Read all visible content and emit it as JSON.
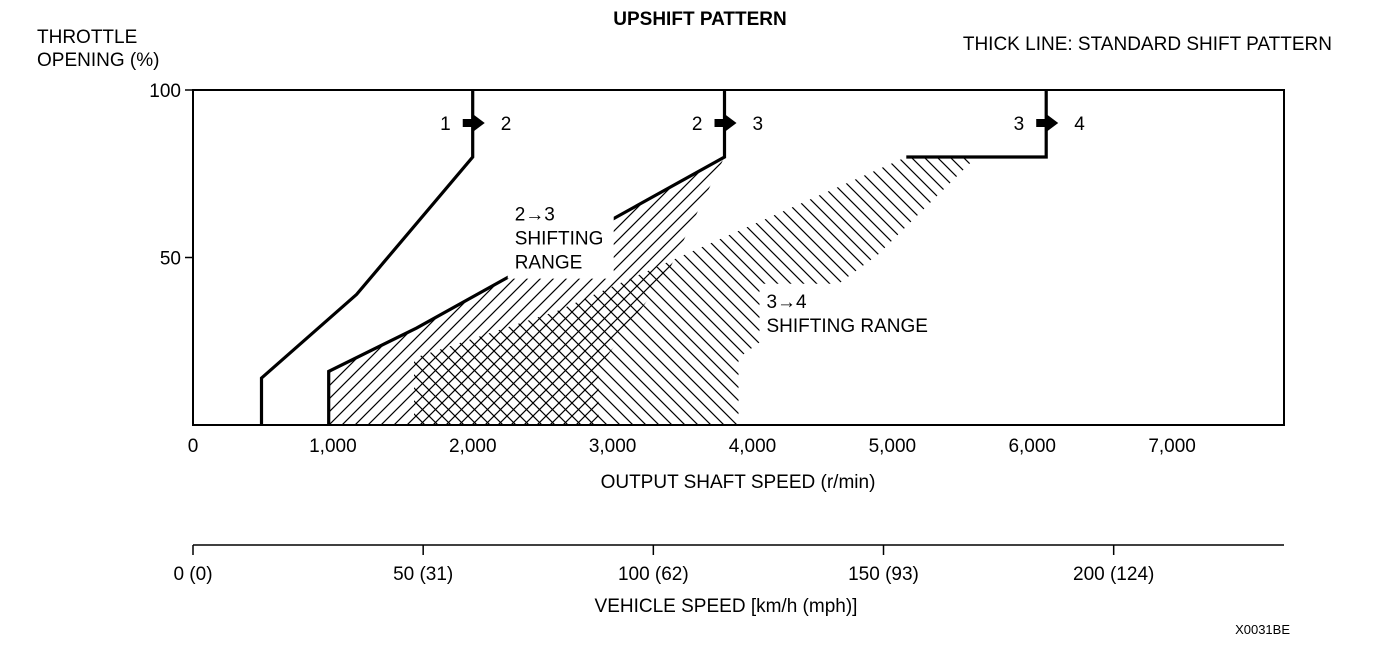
{
  "chart_data": {
    "type": "line",
    "title": "UPSHIFT PATTERN",
    "note": "THICK LINE: STANDARD SHIFT PATTERN",
    "ylabel_line1": "THROTTLE",
    "ylabel_line2": "OPENING (%)",
    "xlabel": "OUTPUT SHAFT SPEED (r/min)",
    "x2label": "VEHICLE SPEED [km/h (mph)]",
    "figure_code": "X0031BE",
    "xlim": [
      0,
      7800
    ],
    "ylim": [
      0,
      100
    ],
    "x_ticks": [
      {
        "value": 0,
        "label": "0"
      },
      {
        "value": 1000,
        "label": "1,000"
      },
      {
        "value": 2000,
        "label": "2,000"
      },
      {
        "value": 3000,
        "label": "3,000"
      },
      {
        "value": 4000,
        "label": "4,000"
      },
      {
        "value": 5000,
        "label": "5,000"
      },
      {
        "value": 6000,
        "label": "6,000"
      },
      {
        "value": 7000,
        "label": "7,000"
      }
    ],
    "y_ticks": [
      {
        "value": 50,
        "label": "50"
      },
      {
        "value": 100,
        "label": "100"
      }
    ],
    "x2_ticks": [
      {
        "value": 0,
        "label": "0 (0)"
      },
      {
        "value": 50,
        "label": "50 (31)"
      },
      {
        "value": 100,
        "label": "100 (62)"
      },
      {
        "value": 150,
        "label": "150 (93)"
      },
      {
        "value": 200,
        "label": "200 (124)"
      }
    ],
    "x2lim": [
      0,
      237
    ],
    "series": [
      {
        "name": "1 → 2",
        "from": "1",
        "to": "2",
        "points": [
          [
            490,
            0
          ],
          [
            490,
            14
          ],
          [
            1170,
            39
          ],
          [
            2000,
            80
          ],
          [
            2000,
            100
          ]
        ]
      },
      {
        "name": "2 → 3",
        "from": "2",
        "to": "3",
        "points": [
          [
            970,
            0
          ],
          [
            970,
            16
          ],
          [
            1600,
            29
          ],
          [
            3800,
            80
          ],
          [
            3800,
            100
          ]
        ]
      },
      {
        "name": "3 → 4",
        "from": "3",
        "to": "4",
        "points": [
          [
            5100,
            80
          ],
          [
            6100,
            80
          ],
          [
            6100,
            100
          ]
        ]
      }
    ],
    "shift_ranges": [
      {
        "label_lines": [
          "2→3",
          "SHIFTING",
          "RANGE"
        ],
        "polygon": [
          [
            970,
            0
          ],
          [
            970,
            16
          ],
          [
            1600,
            29
          ],
          [
            3800,
            80
          ],
          [
            3400,
            46
          ],
          [
            2900,
            17
          ],
          [
            2900,
            0
          ]
        ]
      },
      {
        "label_lines": [
          "3→4",
          "SHIFTING RANGE"
        ],
        "polygon": [
          [
            1580,
            0
          ],
          [
            1580,
            20
          ],
          [
            2600,
            34
          ],
          [
            5100,
            80
          ],
          [
            5600,
            80
          ],
          [
            4900,
            51
          ],
          [
            3900,
            20
          ],
          [
            3900,
            0
          ]
        ]
      }
    ]
  }
}
